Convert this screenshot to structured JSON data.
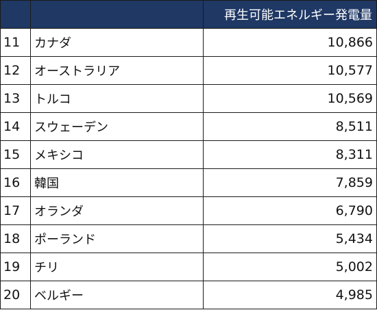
{
  "table": {
    "header": {
      "rank": "",
      "country": "",
      "value": "再生可能エネルギー発電量"
    },
    "rows": [
      {
        "rank": "11",
        "country": "カナダ",
        "value": "10,866"
      },
      {
        "rank": "12",
        "country": "オーストラリア",
        "value": "10,577"
      },
      {
        "rank": "13",
        "country": "トルコ",
        "value": "10,569"
      },
      {
        "rank": "14",
        "country": "スウェーデン",
        "value": "8,511"
      },
      {
        "rank": "15",
        "country": "メキシコ",
        "value": "8,311"
      },
      {
        "rank": "16",
        "country": "韓国",
        "value": "7,859"
      },
      {
        "rank": "17",
        "country": "オランダ",
        "value": "6,790"
      },
      {
        "rank": "18",
        "country": "ポーランド",
        "value": "5,434"
      },
      {
        "rank": "19",
        "country": "チリ",
        "value": "5,002"
      },
      {
        "rank": "20",
        "country": "ベルギー",
        "value": "4,985"
      }
    ]
  },
  "colors": {
    "header_bg": "#1f3864",
    "header_text": "#ffffff",
    "border": "#1a1a1a"
  }
}
